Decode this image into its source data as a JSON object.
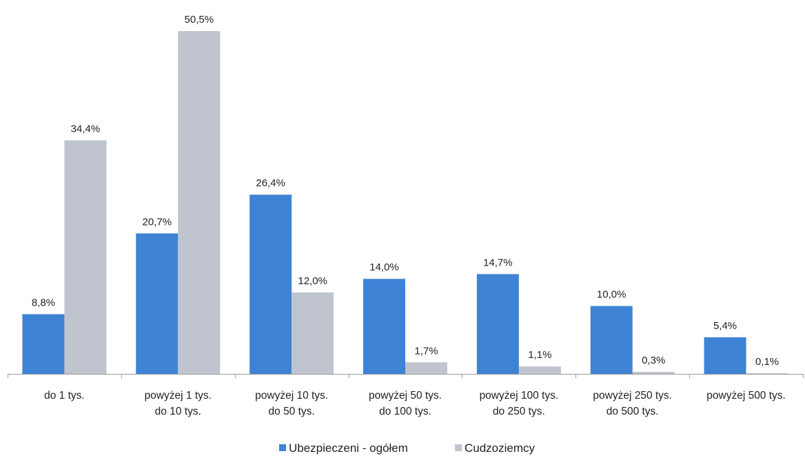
{
  "colors": {
    "series_1": "#3f83d4",
    "series_2": "#c0c4ce",
    "axis": "#9c9c9c"
  },
  "chart_data": {
    "type": "bar",
    "title": "",
    "xlabel": "",
    "ylabel": "",
    "ylim": [
      0,
      52
    ],
    "grid": false,
    "legend_position": "bottom",
    "value_suffix": "%",
    "categories": [
      [
        "do 1 tys."
      ],
      [
        "powyżej 1 tys.",
        "do 10 tys."
      ],
      [
        "powyżej 10 tys.",
        "do 50 tys."
      ],
      [
        "powyżej 50 tys.",
        "do 100 tys."
      ],
      [
        "powyżej 100 tys.",
        "do 250 tys."
      ],
      [
        "powyżej 250 tys.",
        "do 500 tys."
      ],
      [
        "powyżej 500 tys."
      ]
    ],
    "series": [
      {
        "name": "Ubezpieczeni - ogółem",
        "values": [
          8.8,
          20.7,
          26.4,
          14.0,
          14.7,
          10.0,
          5.4
        ],
        "labels": [
          "8,8%",
          "20,7%",
          "26,4%",
          "14,0%",
          "14,7%",
          "10,0%",
          "5,4%"
        ]
      },
      {
        "name": "Cudzoziemcy",
        "values": [
          34.4,
          50.5,
          12.0,
          1.7,
          1.1,
          0.3,
          0.1
        ],
        "labels": [
          "34,4%",
          "50,5%",
          "12,0%",
          "1,7%",
          "1,1%",
          "0,3%",
          "0,1%"
        ]
      }
    ]
  }
}
